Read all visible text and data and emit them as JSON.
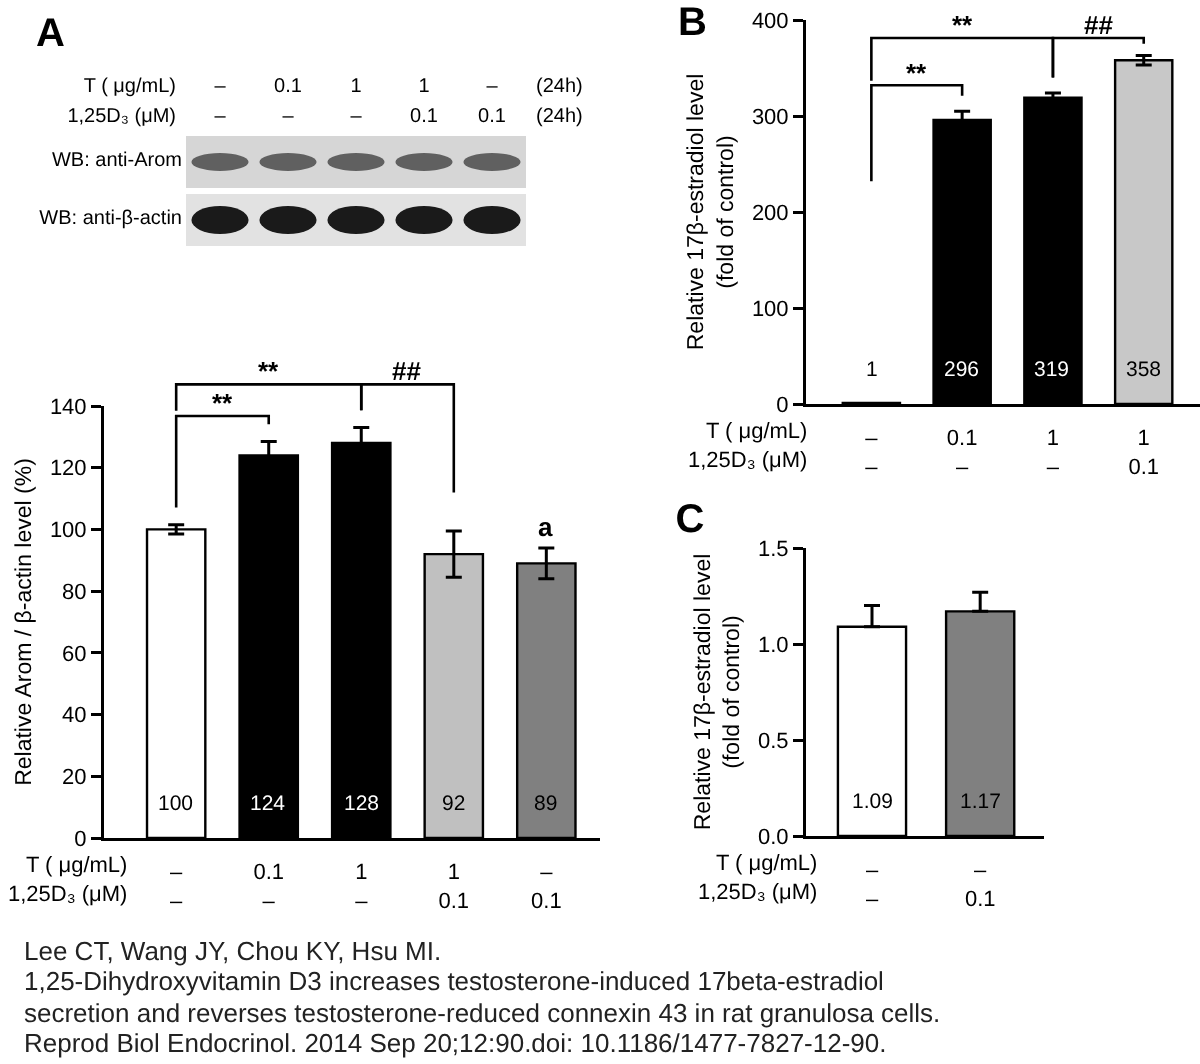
{
  "chart_data": [
    {
      "type": "other",
      "title": "A",
      "categories": [
        "–\n–",
        "0.1\n–",
        "1\n–",
        "1\n0.1",
        "–\n0.1"
      ],
      "xlabel": "T ( μg/mL)\n1,25D₃ (μM)",
      "y_categories": [
        "WB: anti-Arom",
        "WB: anti-β-actin"
      ],
      "annotations": [
        "(24h)",
        "(24h)"
      ]
    },
    {
      "type": "bar",
      "categories": [
        "–\n–",
        "0.1\n–",
        "1\n–",
        "1\n0.1",
        "–\n0.1"
      ],
      "values": [
        100,
        124,
        128,
        92,
        89
      ],
      "colors": [
        "#ffffff",
        "#000000",
        "#000000",
        "#c0c0c0",
        "#808080"
      ],
      "errors": [
        1.5,
        4.5,
        5,
        7.5,
        5
      ],
      "xlabel": "T ( μg/mL)\n1,25D₃ (μM)",
      "ylabel": "Relative Arom / β-actin level (%)",
      "ylim": [
        0,
        140
      ],
      "yticks": [
        0,
        20,
        40,
        60,
        80,
        100,
        120,
        140
      ],
      "data_labels": true,
      "annotations": [
        "**",
        "**",
        "##",
        "a"
      ]
    },
    {
      "type": "bar",
      "title": "B",
      "categories": [
        "–\n–",
        "0.1\n–",
        "1\n–",
        "1\n0.1"
      ],
      "values": [
        1,
        296,
        319,
        358
      ],
      "colors": [
        "#ffffff",
        "#000000",
        "#000000",
        "#c8c8c8"
      ],
      "errors": [
        null,
        9,
        5,
        5
      ],
      "xlabel": "T ( μg/mL)\n1,25D₃ (μM)",
      "ylabel": "Relative 17β-estradiol level\n(fold of control)",
      "ylim": [
        0,
        400
      ],
      "yticks": [
        0,
        100,
        200,
        300,
        400
      ],
      "data_labels": true,
      "annotations": [
        "**",
        "**",
        "##"
      ]
    },
    {
      "type": "bar",
      "title": "C",
      "categories": [
        "–\n–",
        "–\n0.1"
      ],
      "values": [
        1.09,
        1.17
      ],
      "colors": [
        "#ffffff",
        "#808080"
      ],
      "errors": [
        [
          1.09,
          1.2
        ],
        [
          1.17,
          1.27
        ]
      ],
      "xlabel": "T ( μg/mL)\n1,25D₃ (μM)",
      "ylabel": "Relative 17β-estradiol level\n(fold of control)",
      "ylim": [
        0,
        1.5
      ],
      "yticks": [
        {
          "value": 0,
          "label": "0.0"
        },
        {
          "value": 0.5,
          "label": "0.5"
        },
        {
          "value": 1,
          "label": "1.0"
        },
        {
          "value": 1.5,
          "label": "1.5"
        }
      ],
      "data_labels": true
    },
    {
      "type": "other",
      "annotations": [
        "Lee CT, Wang JY, Chou KY, Hsu MI.",
        "1,25-Dihydroxyvitamin D3 increases testosterone-induced 17beta-estradiol secretion and reverses testosterone-reduced connexin 43 in rat granulosa cells.",
        "Reprod Biol Endocrinol. 2014 Sep 20;12:90.doi: 10.1186/1477-7827-12-90."
      ]
    }
  ]
}
